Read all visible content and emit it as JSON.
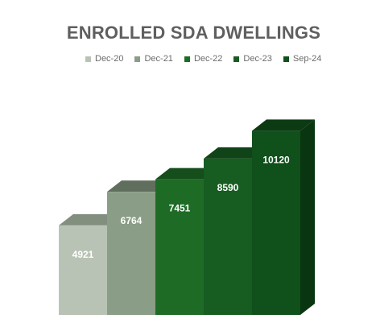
{
  "chart_data": {
    "type": "bar",
    "title": "ENROLLED SDA DWELLINGS",
    "categories": [
      "Dec-20",
      "Dec-21",
      "Dec-22",
      "Dec-23",
      "Sep-24"
    ],
    "values": [
      4921,
      6764,
      7451,
      8590,
      10120
    ],
    "colors": {
      "front": [
        "#b9c3b5",
        "#8a9d86",
        "#1e6b26",
        "#175c21",
        "#10501b"
      ],
      "top": [
        "#828f7f",
        "#606f5d",
        "#154d1b",
        "#104317",
        "#0c3a13"
      ],
      "side": [
        "#8c9889",
        "#67775f",
        "#13481a",
        "#0e3d15",
        "#0a3511"
      ]
    },
    "ylim": [
      0,
      10800
    ],
    "grid": false,
    "legend_position": "top",
    "bar_style": "3d"
  }
}
